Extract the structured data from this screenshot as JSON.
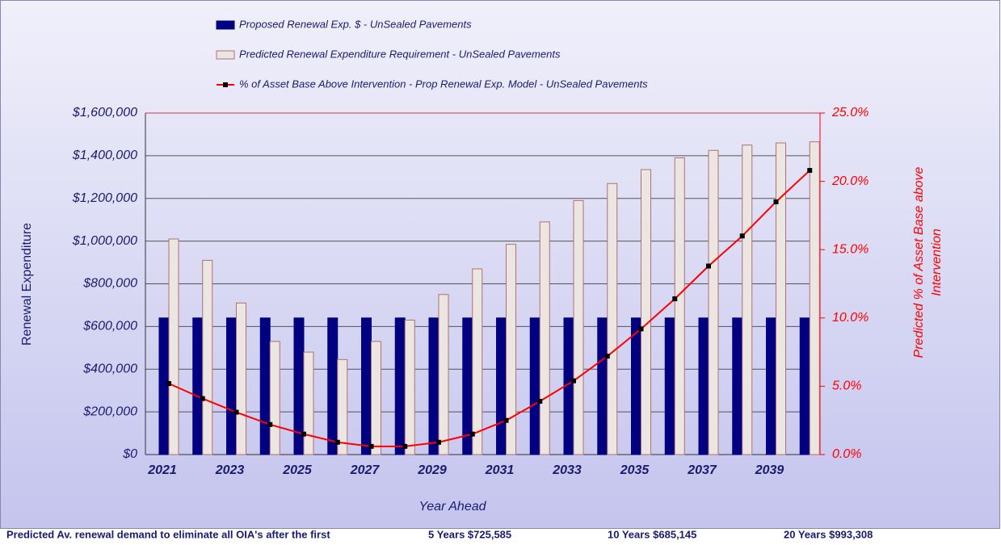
{
  "chart_data": {
    "type": "bar-line",
    "categories": [
      "2021",
      null,
      "2023",
      null,
      "2025",
      null,
      "2027",
      null,
      "2029",
      null,
      "2031",
      null,
      "2033",
      null,
      "2035",
      null,
      "2037",
      null,
      "2039",
      null
    ],
    "series": [
      {
        "name": "Proposed Renewal Exp. $ -  UnSealed Pavements",
        "type": "bar",
        "color": "#000080",
        "values": [
          640000,
          640000,
          640000,
          640000,
          640000,
          640000,
          640000,
          640000,
          640000,
          640000,
          640000,
          640000,
          640000,
          640000,
          640000,
          640000,
          640000,
          640000,
          640000,
          640000
        ]
      },
      {
        "name": "Predicted Renewal Expenditure Requirement -  UnSealed Pavements",
        "type": "bar",
        "color": "#ece6e2",
        "values": [
          1010000,
          910000,
          710000,
          530000,
          480000,
          445000,
          530000,
          630000,
          750000,
          870000,
          985000,
          1090000,
          1190000,
          1270000,
          1335000,
          1390000,
          1425000,
          1450000,
          1460000,
          1465000
        ]
      },
      {
        "name": "% of Asset Base Above Intervention - Prop Renewal Exp. Model  -  UnSealed Pavements",
        "type": "line",
        "axis": "y2",
        "color": "#ff0000",
        "values": [
          5.2,
          4.1,
          3.1,
          2.2,
          1.5,
          0.9,
          0.6,
          0.6,
          0.9,
          1.5,
          2.5,
          3.9,
          5.4,
          7.2,
          9.2,
          11.4,
          13.8,
          16.0,
          18.5,
          20.8
        ]
      }
    ],
    "ylim": [
      0,
      1600000
    ],
    "yticks": [
      {
        "value": 0,
        "label": "$0"
      },
      {
        "value": 200000,
        "label": "$200,000"
      },
      {
        "value": 400000,
        "label": "$400,000"
      },
      {
        "value": 600000,
        "label": "$600,000"
      },
      {
        "value": 800000,
        "label": "$800,000"
      },
      {
        "value": 1000000,
        "label": "$1,000,000"
      },
      {
        "value": 1200000,
        "label": "$1,200,000"
      },
      {
        "value": 1400000,
        "label": "$1,400,000"
      },
      {
        "value": 1600000,
        "label": "$1,600,000"
      }
    ],
    "y2lim": [
      0,
      25
    ],
    "y2ticks": [
      {
        "value": 0,
        "label": "0.0%"
      },
      {
        "value": 5,
        "label": "5.0%"
      },
      {
        "value": 10,
        "label": "10.0%"
      },
      {
        "value": 15,
        "label": "15.0%"
      },
      {
        "value": 20,
        "label": "20.0%"
      },
      {
        "value": 25,
        "label": "25.0%"
      }
    ],
    "ylabel": "Renewal Expenditure",
    "y2label": [
      "Predicted % of Asset Base above",
      "Intervention"
    ],
    "xlabel": "Year Ahead",
    "grid": true
  },
  "footer": {
    "lead": "Predicted Av. renewal demand to eliminate all OIA's after the first",
    "items": [
      "5 Years $725,585",
      "10 Years $685,145",
      "20 Years $993,308"
    ]
  }
}
